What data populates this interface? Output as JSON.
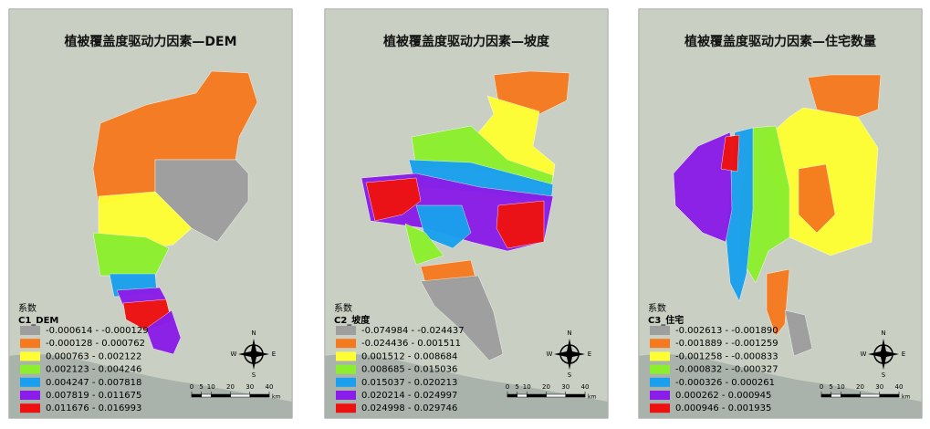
{
  "panels": [
    {
      "title": "植被覆盖度驱动力因素—DEM",
      "legend_title": "系数",
      "field": "C1_DEM",
      "items": [
        {
          "label": "-0.000614 - -0.000129",
          "color": "#9e9e9e"
        },
        {
          "label": "-0.000128 - 0.000762",
          "color": "#f57a1f"
        },
        {
          "label": "0.000763 - 0.002122",
          "color": "#ffff33"
        },
        {
          "label": "0.002123 - 0.004246",
          "color": "#8cef2e"
        },
        {
          "label": "0.004247 - 0.007818",
          "color": "#1aa0ee"
        },
        {
          "label": "0.007819 - 0.011675",
          "color": "#8a1de8"
        },
        {
          "label": "0.011676 - 0.016993",
          "color": "#ee1111"
        }
      ],
      "scale_ticks": [
        0,
        5,
        10,
        20,
        30,
        40
      ],
      "scale_unit": "km",
      "compass": [
        "N",
        "E",
        "S",
        "W"
      ]
    },
    {
      "title": "植被覆盖度驱动力因素—坡度",
      "legend_title": "系数",
      "field": "C2_坡度",
      "items": [
        {
          "label": "-0.074984 - -0.024437",
          "color": "#9e9e9e"
        },
        {
          "label": "-0.024436 - 0.001511",
          "color": "#f57a1f"
        },
        {
          "label": "0.001512 - 0.008684",
          "color": "#ffff33"
        },
        {
          "label": "0.008685 - 0.015036",
          "color": "#8cef2e"
        },
        {
          "label": "0.015037 - 0.020213",
          "color": "#1aa0ee"
        },
        {
          "label": "0.020214 - 0.024997",
          "color": "#8a1de8"
        },
        {
          "label": "0.024998 - 0.029746",
          "color": "#ee1111"
        }
      ],
      "scale_ticks": [
        0,
        5,
        10,
        20,
        30,
        40
      ],
      "scale_unit": "km",
      "compass": [
        "N",
        "E",
        "S",
        "W"
      ]
    },
    {
      "title": "植被覆盖度驱动力因素—住宅数量",
      "legend_title": "系数",
      "field": "C3_住宅",
      "items": [
        {
          "label": "-0.002613 - -0.001890",
          "color": "#9e9e9e"
        },
        {
          "label": "-0.001889 - -0.001259",
          "color": "#f57a1f"
        },
        {
          "label": "-0.001258 - -0.000833",
          "color": "#ffff33"
        },
        {
          "label": "-0.000832 - -0.000327",
          "color": "#8cef2e"
        },
        {
          "label": "-0.000326 - 0.000261",
          "color": "#1aa0ee"
        },
        {
          "label": "0.000262 - 0.000945",
          "color": "#8a1de8"
        },
        {
          "label": "0.000946 - 0.001935",
          "color": "#ee1111"
        }
      ],
      "scale_ticks": [
        0,
        5,
        10,
        20,
        30,
        40
      ],
      "scale_unit": "km",
      "compass": [
        "N",
        "E",
        "S",
        "W"
      ]
    }
  ]
}
